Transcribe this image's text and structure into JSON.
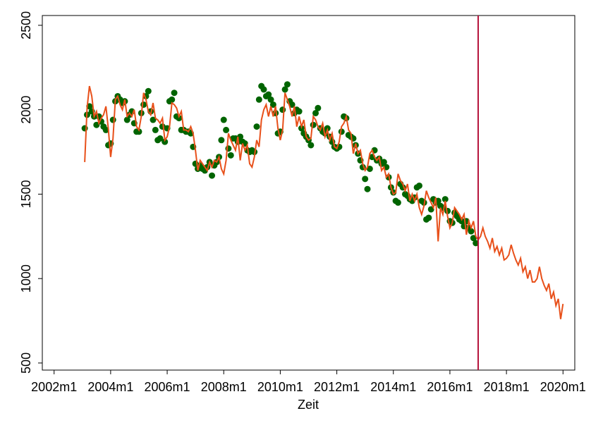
{
  "chart_data": {
    "type": "line",
    "x_label": "Zeit",
    "x": [
      517,
      518,
      519,
      520,
      521,
      522,
      523,
      524,
      525,
      526,
      527,
      528,
      529,
      530,
      531,
      532,
      533,
      534,
      535,
      536,
      537,
      538,
      539,
      540,
      541,
      542,
      543,
      544,
      545,
      546,
      547,
      548,
      549,
      550,
      551,
      552,
      553,
      554,
      555,
      556,
      557,
      558,
      559,
      560,
      561,
      562,
      563,
      564,
      565,
      566,
      567,
      568,
      569,
      570,
      571,
      572,
      573,
      574,
      575,
      576,
      577,
      578,
      579,
      580,
      581,
      582,
      583,
      584,
      585,
      586,
      587,
      588,
      589,
      590,
      591,
      592,
      593,
      594,
      595,
      596,
      597,
      598,
      599,
      600,
      601,
      602,
      603,
      604,
      605,
      606,
      607,
      608,
      609,
      610,
      611,
      612,
      613,
      614,
      615,
      616,
      617,
      618,
      619,
      620,
      621,
      622,
      623,
      624,
      625,
      626,
      627,
      628,
      629,
      630,
      631,
      632,
      633,
      634,
      635,
      636,
      637,
      638,
      639,
      640,
      641,
      642,
      643,
      644,
      645,
      646,
      647,
      648,
      649,
      650,
      651,
      652,
      653,
      654,
      655,
      656,
      657,
      658,
      659,
      660,
      661,
      662,
      663,
      664,
      665,
      666,
      667,
      668,
      669,
      670,
      671,
      672,
      673,
      674,
      675,
      676,
      677,
      678,
      679,
      680,
      681,
      682,
      683,
      684,
      685,
      686,
      687,
      688,
      689,
      690,
      691,
      692,
      693,
      694,
      695,
      696,
      697,
      698,
      699,
      700,
      701,
      702,
      703,
      704,
      705,
      706,
      707,
      708,
      709,
      710,
      711,
      712,
      713,
      714,
      715,
      716,
      717,
      718,
      719,
      720
    ],
    "series": [
      {
        "type": "scatter",
        "color": "#006400",
        "values": [
          1890,
          1970,
          2020,
          1990,
          1960,
          1910,
          1960,
          1930,
          1900,
          1880,
          1790,
          1800,
          1940,
          2050,
          2080,
          2060,
          2040,
          2050,
          1940,
          1970,
          1990,
          1920,
          1870,
          1870,
          1980,
          2030,
          2080,
          2110,
          1990,
          1940,
          1880,
          1820,
          1830,
          1900,
          1810,
          1890,
          2050,
          2060,
          2100,
          1960,
          1950,
          1880,
          1880,
          1870,
          1870,
          1860,
          1780,
          1680,
          1650,
          1670,
          1650,
          1640,
          1660,
          1690,
          1610,
          1670,
          1690,
          1720,
          1820,
          1940,
          1880,
          1770,
          1730,
          1830,
          1830,
          1810,
          1840,
          1810,
          1800,
          1760,
          1750,
          1760,
          1750,
          1900,
          2060,
          2140,
          2120,
          2080,
          2090,
          2060,
          2030,
          1980,
          1860,
          1870,
          2000,
          2120,
          2150,
          2050,
          2030,
          1980,
          2000,
          1990,
          1890,
          1860,
          1840,
          1820,
          1790,
          1910,
          1980,
          2010,
          1890,
          1870,
          1860,
          1890,
          1840,
          1810,
          1780,
          1770,
          1780,
          1870,
          1960,
          1950,
          1850,
          1840,
          1830,
          1790,
          1740,
          1700,
          1660,
          1590,
          1530,
          1650,
          1720,
          1760,
          1700,
          1710,
          1680,
          1690,
          1660,
          1600,
          1540,
          1510,
          1460,
          1450,
          1560,
          1540,
          1500,
          1490,
          1470,
          1460,
          1480,
          1540,
          1550,
          1460,
          1450,
          1350,
          1360,
          1410,
          1470,
          1450,
          1460,
          1430,
          1420,
          1470,
          1400,
          1340,
          1330,
          1390,
          1370,
          1350,
          1340,
          1310,
          1340,
          1300,
          1280,
          1240,
          1210,
          null,
          null,
          null,
          null,
          null,
          null,
          null,
          null,
          null,
          null,
          null,
          null,
          null,
          null,
          null,
          null,
          null,
          null,
          null,
          null,
          null,
          null,
          null,
          null,
          null,
          null,
          null,
          null,
          null,
          null,
          null,
          null,
          null,
          null,
          null,
          null,
          null
        ]
      },
      {
        "type": "line",
        "color": "#e8501a",
        "values": [
          1690,
          2010,
          2140,
          2080,
          1960,
          1990,
          1920,
          1950,
          1970,
          2020,
          1890,
          1720,
          1830,
          2060,
          2080,
          2030,
          2000,
          2060,
          1960,
          1980,
          1960,
          2000,
          1900,
          1880,
          1960,
          2100,
          2060,
          1990,
          1970,
          2040,
          1950,
          1940,
          1920,
          1950,
          1820,
          1840,
          1900,
          2040,
          2030,
          2010,
          1960,
          1990,
          1880,
          1880,
          1870,
          1900,
          1860,
          1760,
          1640,
          1700,
          1680,
          1660,
          1640,
          1690,
          1660,
          1700,
          1690,
          1720,
          1650,
          1620,
          1700,
          1860,
          1820,
          1790,
          1760,
          1840,
          1700,
          1800,
          1760,
          1790,
          1680,
          1660,
          1720,
          1820,
          1780,
          1940,
          2000,
          2030,
          1960,
          2020,
          1960,
          2020,
          1890,
          1820,
          1880,
          2100,
          2060,
          2020,
          1960,
          2020,
          1900,
          1960,
          1900,
          1940,
          1840,
          1820,
          1830,
          1960,
          1940,
          1900,
          1880,
          1920,
          1840,
          1880,
          1820,
          1860,
          1780,
          1770,
          1810,
          1900,
          1920,
          1960,
          1880,
          1860,
          1740,
          1800,
          1740,
          1760,
          1680,
          1640,
          1660,
          1740,
          1760,
          1720,
          1700,
          1720,
          1640,
          1660,
          1600,
          1620,
          1540,
          1500,
          1510,
          1620,
          1580,
          1560,
          1520,
          1560,
          1460,
          1500,
          1460,
          1500,
          1420,
          1380,
          1430,
          1520,
          1480,
          1450,
          1420,
          1480,
          1220,
          1420,
          1380,
          1460,
          1370,
          1300,
          1330,
          1420,
          1400,
          1380,
          1350,
          1380,
          1260,
          1340,
          1300,
          1340,
          1250,
          1230,
          1250,
          1300,
          1250,
          1220,
          1180,
          1240,
          1160,
          1190,
          1140,
          1180,
          1110,
          1120,
          1140,
          1200,
          1150,
          1110,
          1080,
          1120,
          1040,
          1070,
          1000,
          1050,
          980,
          980,
          1000,
          1070,
          1000,
          960,
          930,
          970,
          880,
          920,
          840,
          880,
          760,
          850
        ]
      }
    ],
    "xline": 684,
    "xline_color": "#b5123b",
    "xlim": [
      499,
      725
    ],
    "ylim": [
      458,
      2558
    ],
    "xticks": [
      {
        "value": 504,
        "label": "2002m1"
      },
      {
        "value": 528,
        "label": "2004m1"
      },
      {
        "value": 552,
        "label": "2006m1"
      },
      {
        "value": 576,
        "label": "2008m1"
      },
      {
        "value": 600,
        "label": "2010m1"
      },
      {
        "value": 624,
        "label": "2012m1"
      },
      {
        "value": 648,
        "label": "2014m1"
      },
      {
        "value": 672,
        "label": "2016m1"
      },
      {
        "value": 696,
        "label": "2018m1"
      },
      {
        "value": 720,
        "label": "2020m1"
      }
    ],
    "yticks": [
      500,
      1000,
      1500,
      2000,
      2500
    ]
  }
}
